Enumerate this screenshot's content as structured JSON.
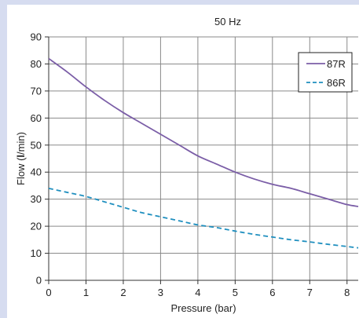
{
  "chart_data": {
    "type": "line",
    "title": "50 Hz",
    "xlabel": "Pressure (bar)",
    "ylabel_prefix": "Flow (",
    "ylabel_unit_bold": "l",
    "ylabel_suffix": "/min)",
    "xlim": [
      0,
      8.3
    ],
    "ylim": [
      0,
      90
    ],
    "xticks": [
      0,
      1,
      2,
      3,
      4,
      5,
      6,
      7,
      8
    ],
    "yticks": [
      0,
      10,
      20,
      30,
      40,
      50,
      60,
      70,
      80,
      90
    ],
    "grid": true,
    "legend_position": "top-right",
    "series": [
      {
        "name": "87R",
        "color": "#7b5ea7",
        "style": "solid",
        "x": [
          0,
          0.5,
          1,
          1.5,
          2,
          2.5,
          3,
          3.5,
          4,
          4.5,
          5,
          5.5,
          6,
          6.5,
          7,
          7.5,
          8,
          8.3
        ],
        "y": [
          82,
          77,
          71.5,
          66.5,
          62,
          58,
          54,
          50,
          46,
          43,
          40,
          37.5,
          35.5,
          34,
          32,
          30,
          28,
          27.3
        ]
      },
      {
        "name": "86R",
        "color": "#1f8fbf",
        "style": "dashed",
        "x": [
          0,
          0.5,
          1,
          1.5,
          2,
          2.5,
          3,
          3.5,
          4,
          4.5,
          5,
          5.5,
          6,
          6.5,
          7,
          7.5,
          8,
          8.3
        ],
        "y": [
          34,
          32.5,
          31,
          29,
          27,
          25,
          23.5,
          22,
          20.5,
          19.5,
          18.2,
          17,
          16,
          15,
          14.2,
          13.3,
          12.5,
          12
        ]
      }
    ]
  }
}
